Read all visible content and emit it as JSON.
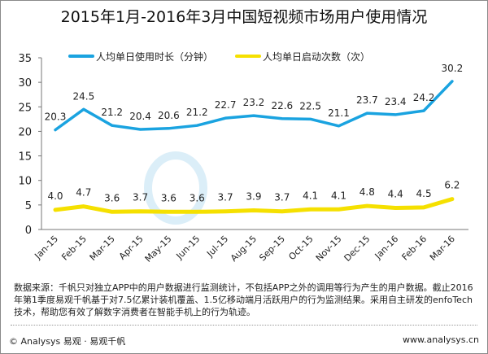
{
  "chart_data": {
    "type": "line",
    "title": "2015年1月-2016年3月中国短视频市场用户使用情况",
    "categories": [
      "Jan-15",
      "Feb-15",
      "Mar-15",
      "Apr-15",
      "May-15",
      "Jun-15",
      "Jul-15",
      "Aug-15",
      "Sep-15",
      "Oct-15",
      "Nov-15",
      "Dec-15",
      "Jan-16",
      "Feb-16",
      "Mar-16"
    ],
    "series": [
      {
        "name": "人均单日使用时长（分钟）",
        "color": "#1aa3e0",
        "values": [
          20.3,
          24.5,
          21.2,
          20.4,
          20.6,
          21.2,
          22.7,
          23.2,
          22.6,
          22.5,
          21.1,
          23.7,
          23.4,
          24.2,
          30.2
        ],
        "labels": [
          "20.3",
          "24.5",
          "21.2",
          "20.4",
          "20.6",
          "21.2",
          "22.7",
          "23.2",
          "22.6",
          "22.5",
          "21.1",
          "23.7",
          "23.4",
          "24.2",
          "30.2"
        ]
      },
      {
        "name": "人均单日启动次数（次）",
        "color": "#f5e000",
        "values": [
          4.0,
          4.7,
          3.6,
          3.7,
          3.6,
          3.6,
          3.7,
          3.9,
          3.7,
          4.1,
          4.1,
          4.8,
          4.4,
          4.5,
          6.2
        ],
        "labels": [
          "4.0",
          "4.7",
          "3.6",
          "3.7",
          "3.6",
          "3.6",
          "3.7",
          "3.9",
          "3.7",
          "4.1",
          "4.1",
          "4.8",
          "4.4",
          "4.5",
          "6.2"
        ]
      }
    ],
    "ylim": [
      0,
      35
    ],
    "yticks": [
      "0",
      "5",
      "10",
      "15",
      "20",
      "25",
      "30",
      "35"
    ],
    "grid": false,
    "legend": "top"
  },
  "footer": {
    "source": "数据来源：千帆只对独立APP中的用户数据进行监测统计，不包括APP之外的调用等行为产生的用户数据。截止2016年第1季度易观千帆基于对7.5亿累计装机覆盖、1.5亿移动端月活跃用户的行为监测结果。采用自主研发的enfoTech技术，帮助您有效了解数字消费者在智能手机上的行为轨迹。",
    "copyright": "© Analysys 易观 · 易观千帆",
    "url": "www.analysys.cn"
  },
  "watermark": "Analysys"
}
